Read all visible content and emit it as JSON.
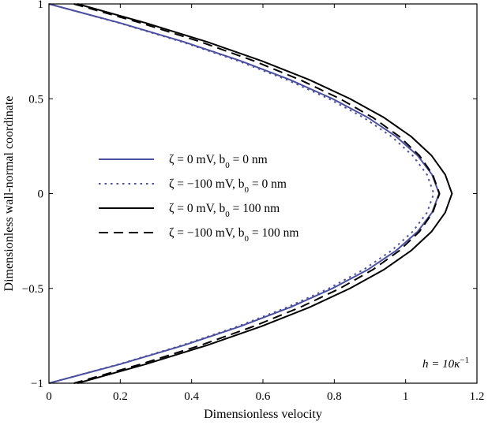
{
  "chart_data": {
    "type": "line",
    "xlabel": "Dimensionless velocity",
    "ylabel": "Dimensionless wall-normal coordinate",
    "xlim": [
      0,
      1.2
    ],
    "ylim": [
      -1,
      1
    ],
    "x_ticks": [
      "0",
      "0.2",
      "0.4",
      "0.6",
      "0.8",
      "1",
      "1.2"
    ],
    "y_ticks": [
      "1",
      "0.5",
      "0",
      "−0.5",
      "−1"
    ],
    "grid": false,
    "legend_position": "left-center",
    "annotation": {
      "main": "h = 10κ",
      "sup": "−1"
    },
    "series": [
      {
        "legend": [
          "ζ = 0 mV, b",
          "0",
          " = 0 nm"
        ],
        "color": "#4a4fa0",
        "dash": "solid",
        "points": [
          [
            0.0,
            1.0
          ],
          [
            0.199,
            0.9
          ],
          [
            0.378,
            0.8
          ],
          [
            0.537,
            0.7
          ],
          [
            0.676,
            0.6
          ],
          [
            0.795,
            0.5
          ],
          [
            0.895,
            0.4
          ],
          [
            0.974,
            0.3
          ],
          [
            1.034,
            0.2
          ],
          [
            1.074,
            0.1
          ],
          [
            1.094,
            0.0
          ],
          [
            1.074,
            -0.1
          ],
          [
            1.034,
            -0.2
          ],
          [
            0.974,
            -0.3
          ],
          [
            0.895,
            -0.4
          ],
          [
            0.795,
            -0.5
          ],
          [
            0.676,
            -0.6
          ],
          [
            0.537,
            -0.7
          ],
          [
            0.378,
            -0.8
          ],
          [
            0.199,
            -0.9
          ],
          [
            0.0,
            -1.0
          ]
        ]
      },
      {
        "legend": [
          "ζ = −100 mV, b",
          "0",
          " = 0 nm"
        ],
        "color": "#4a4fa0",
        "dash": "dot",
        "points": [
          [
            0.0,
            1.0
          ],
          [
            0.196,
            0.9
          ],
          [
            0.373,
            0.8
          ],
          [
            0.53,
            0.7
          ],
          [
            0.667,
            0.6
          ],
          [
            0.785,
            0.5
          ],
          [
            0.883,
            0.4
          ],
          [
            0.961,
            0.3
          ],
          [
            1.02,
            0.2
          ],
          [
            1.06,
            0.1
          ],
          [
            1.079,
            0.0
          ],
          [
            1.06,
            -0.1
          ],
          [
            1.02,
            -0.2
          ],
          [
            0.961,
            -0.3
          ],
          [
            0.883,
            -0.4
          ],
          [
            0.785,
            -0.5
          ],
          [
            0.667,
            -0.6
          ],
          [
            0.53,
            -0.7
          ],
          [
            0.373,
            -0.8
          ],
          [
            0.196,
            -0.9
          ],
          [
            0.0,
            -1.0
          ]
        ]
      },
      {
        "legend": [
          "ζ = 0 mV, b",
          "0",
          " = 100 nm"
        ],
        "color": "#000000",
        "dash": "solid",
        "points": [
          [
            0.08,
            1.0
          ],
          [
            0.271,
            0.9
          ],
          [
            0.443,
            0.8
          ],
          [
            0.596,
            0.7
          ],
          [
            0.73,
            0.6
          ],
          [
            0.844,
            0.5
          ],
          [
            0.94,
            0.4
          ],
          [
            1.016,
            0.3
          ],
          [
            1.073,
            0.2
          ],
          [
            1.111,
            0.1
          ],
          [
            1.13,
            0.0
          ],
          [
            1.111,
            -0.1
          ],
          [
            1.073,
            -0.2
          ],
          [
            1.016,
            -0.3
          ],
          [
            0.94,
            -0.4
          ],
          [
            0.844,
            -0.5
          ],
          [
            0.73,
            -0.6
          ],
          [
            0.596,
            -0.7
          ],
          [
            0.443,
            -0.8
          ],
          [
            0.271,
            -0.9
          ],
          [
            0.08,
            -1.0
          ]
        ]
      },
      {
        "legend": [
          "ζ = −100 mV, b",
          "0",
          " = 100 nm"
        ],
        "color": "#000000",
        "dash": "dash",
        "points": [
          [
            0.07,
            1.0
          ],
          [
            0.257,
            0.9
          ],
          [
            0.425,
            0.8
          ],
          [
            0.574,
            0.7
          ],
          [
            0.704,
            0.6
          ],
          [
            0.816,
            0.5
          ],
          [
            0.909,
            0.4
          ],
          [
            0.983,
            0.3
          ],
          [
            1.039,
            0.2
          ],
          [
            1.076,
            0.1
          ],
          [
            1.095,
            0.0
          ],
          [
            1.076,
            -0.1
          ],
          [
            1.039,
            -0.2
          ],
          [
            0.983,
            -0.3
          ],
          [
            0.909,
            -0.4
          ],
          [
            0.816,
            -0.5
          ],
          [
            0.704,
            -0.6
          ],
          [
            0.574,
            -0.7
          ],
          [
            0.425,
            -0.8
          ],
          [
            0.257,
            -0.9
          ],
          [
            0.07,
            -1.0
          ]
        ]
      }
    ]
  }
}
